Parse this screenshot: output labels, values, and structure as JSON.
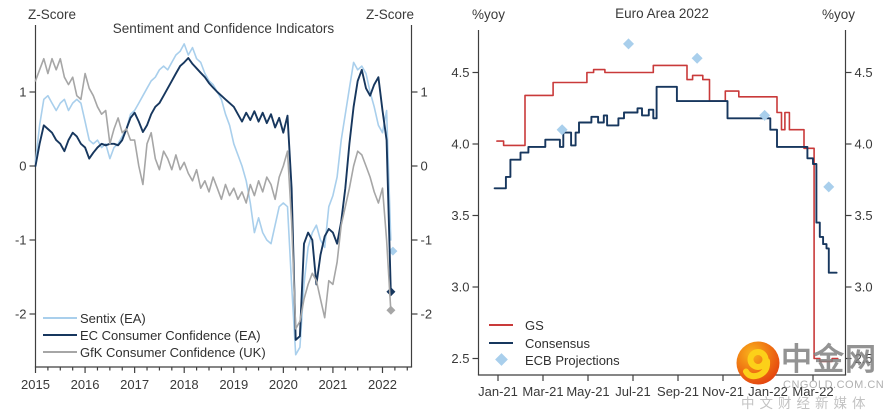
{
  "colors": {
    "background": "#ffffff",
    "axis": "#3f3f3f",
    "text": "#3a3a3a",
    "sentix_blue": "#a9cfec",
    "navy": "#17375e",
    "gray": "#a6a6a6",
    "gs_red": "#c93a3a"
  },
  "watermark": {
    "name": "中金网",
    "domain": "CNGOLD.COM.CN",
    "tagline": "中文财经新媒体",
    "logo_icon": "cngold-swirl-logo"
  },
  "chart_data": [
    {
      "type": "line",
      "title": "Sentiment and Confidence Indicators",
      "unit_left": "Z-Score",
      "unit_right": "Z-Score",
      "ylabel": "Z-Score",
      "ylim": [
        -2.72,
        1.9
      ],
      "y_ticks": [
        1,
        0,
        -1,
        -2
      ],
      "y_tick_labels": [
        "1",
        "0",
        "-1",
        "-2"
      ],
      "x_ticks": [
        2015,
        2016,
        2017,
        2018,
        2019,
        2020,
        2021,
        2022
      ],
      "x_tick_labels": [
        "2015",
        "2016",
        "2017",
        "2018",
        "2019",
        "2020",
        "2021",
        "2022"
      ],
      "x_unit": "year, monthly data",
      "grid": false,
      "legend_position": "lower-left",
      "series": [
        {
          "name": "Sentix (EA)",
          "color": "#a9cfec",
          "width": 1.6,
          "x_start": 2015.0,
          "x_step": 0.0833333,
          "values": [
            0.05,
            0.55,
            0.9,
            0.95,
            0.85,
            0.75,
            0.85,
            0.9,
            0.75,
            0.85,
            0.9,
            0.85,
            0.6,
            0.35,
            0.3,
            0.35,
            0.25,
            0.3,
            0.1,
            0.25,
            0.3,
            0.4,
            0.5,
            0.7,
            0.75,
            0.85,
            0.95,
            1.05,
            1.15,
            1.2,
            1.3,
            1.35,
            1.3,
            1.4,
            1.5,
            1.55,
            1.65,
            1.5,
            1.6,
            1.45,
            1.4,
            1.25,
            1.15,
            1.1,
            1.0,
            0.9,
            0.7,
            0.55,
            0.3,
            0.15,
            0.0,
            -0.2,
            -0.5,
            -0.9,
            -0.7,
            -0.9,
            -1.0,
            -1.05,
            -0.8,
            -0.55,
            -0.5,
            -0.55,
            -1.6,
            -2.55,
            -2.45,
            -1.6,
            -1.1,
            -0.9,
            -0.8,
            -1.0,
            -1.1,
            -0.55,
            -0.4,
            -0.15,
            0.35,
            0.7,
            1.05,
            1.4,
            1.3,
            1.35,
            1.25,
            1.0,
            0.8,
            0.55,
            0.45,
            0.75,
            -1.0
          ],
          "marker": {
            "x": 2022.21,
            "v": -1.15
          }
        },
        {
          "name": "EC Consumer Confidence (EA)",
          "color": "#17375e",
          "width": 1.9,
          "x_start": 2015.0,
          "x_step": 0.0833333,
          "values": [
            0.0,
            0.3,
            0.55,
            0.5,
            0.45,
            0.35,
            0.3,
            0.2,
            0.35,
            0.45,
            0.4,
            0.3,
            0.25,
            0.1,
            0.18,
            0.25,
            0.3,
            0.28,
            0.3,
            0.3,
            0.28,
            0.35,
            0.5,
            0.65,
            0.72,
            0.6,
            0.46,
            0.55,
            0.7,
            0.8,
            0.85,
            0.95,
            1.05,
            1.15,
            1.25,
            1.35,
            1.4,
            1.46,
            1.38,
            1.32,
            1.26,
            1.2,
            1.12,
            1.06,
            1.0,
            0.95,
            0.9,
            0.85,
            0.8,
            0.7,
            0.6,
            0.72,
            0.62,
            0.74,
            0.6,
            0.72,
            0.58,
            0.7,
            0.52,
            0.65,
            0.45,
            0.68,
            -0.3,
            -2.35,
            -2.3,
            -1.05,
            -0.9,
            -1.0,
            -1.6,
            -1.2,
            -0.95,
            -0.85,
            -0.9,
            -1.05,
            -0.75,
            -0.3,
            0.3,
            0.8,
            1.15,
            1.3,
            1.05,
            0.95,
            1.1,
            1.2,
            0.75,
            0.35,
            -1.7
          ],
          "marker": {
            "x": 2022.17,
            "v": -1.7
          }
        },
        {
          "name": "GfK Consumer Confidence (UK)",
          "color": "#a6a6a6",
          "width": 1.6,
          "x_start": 2015.0,
          "x_step": 0.0833333,
          "values": [
            1.15,
            1.3,
            1.45,
            1.25,
            1.45,
            1.3,
            1.45,
            1.2,
            1.1,
            1.2,
            0.95,
            0.9,
            1.25,
            1.05,
            0.95,
            0.8,
            0.7,
            0.75,
            0.3,
            0.5,
            0.65,
            0.45,
            0.5,
            0.35,
            0.35,
            0.0,
            -0.25,
            0.3,
            0.45,
            0.1,
            -0.05,
            0.2,
            0.1,
            -0.05,
            0.15,
            -0.05,
            0.05,
            -0.1,
            -0.2,
            -0.05,
            -0.3,
            -0.2,
            -0.35,
            -0.15,
            -0.3,
            -0.45,
            -0.25,
            -0.4,
            -0.3,
            -0.45,
            -0.35,
            -0.5,
            -0.25,
            -0.4,
            -0.2,
            -0.35,
            -0.15,
            -0.25,
            -0.45,
            -0.15,
            0.0,
            0.2,
            -0.75,
            -2.2,
            -2.1,
            -1.8,
            -1.6,
            -1.45,
            -1.55,
            -1.8,
            -2.05,
            -1.55,
            -1.6,
            -1.3,
            -0.8,
            -0.55,
            -0.3,
            0.0,
            0.2,
            0.15,
            0.0,
            -0.15,
            -0.35,
            -0.5,
            -0.3,
            -1.0,
            -1.95
          ],
          "marker": {
            "x": 2022.17,
            "v": -1.95
          }
        }
      ]
    },
    {
      "type": "line",
      "title": "Euro Area 2022",
      "unit_left": "%yoy",
      "unit_right": "%yoy",
      "ylabel": "%yoy",
      "ylim": [
        2.38,
        4.8
      ],
      "y_ticks": [
        2.5,
        3.0,
        3.5,
        4.0,
        4.5
      ],
      "y_tick_labels": [
        "2.5",
        "3.0",
        "3.5",
        "4.0",
        "4.5"
      ],
      "x_ticks": [
        0,
        2,
        4,
        6,
        8,
        10,
        12,
        14
      ],
      "x_tick_labels": [
        "Jan-21",
        "Mar-21",
        "May-21",
        "Jul-21",
        "Sep-21",
        "Nov-21",
        "Jan-22",
        "Mar-22"
      ],
      "x_unit": "months since Jan-2021, forecast vintage",
      "grid": false,
      "legend_position": "lower-left",
      "series": [
        {
          "name": "GS",
          "color": "#c93a3a",
          "width": 1.6,
          "points": [
            [
              -0.05,
              4.02
            ],
            [
              0.25,
              4.02
            ],
            [
              0.25,
              3.99
            ],
            [
              1.2,
              3.99
            ],
            [
              1.2,
              4.34
            ],
            [
              2.45,
              4.34
            ],
            [
              2.45,
              4.43
            ],
            [
              3.95,
              4.43
            ],
            [
              3.95,
              4.5
            ],
            [
              4.25,
              4.5
            ],
            [
              4.25,
              4.52
            ],
            [
              4.75,
              4.52
            ],
            [
              4.75,
              4.5
            ],
            [
              6.9,
              4.5
            ],
            [
              6.9,
              4.55
            ],
            [
              8.4,
              4.55
            ],
            [
              8.4,
              4.45
            ],
            [
              8.65,
              4.45
            ],
            [
              8.65,
              4.48
            ],
            [
              9.1,
              4.48
            ],
            [
              9.1,
              4.45
            ],
            [
              9.4,
              4.45
            ],
            [
              9.4,
              4.3
            ],
            [
              10.1,
              4.3
            ],
            [
              10.1,
              4.37
            ],
            [
              10.7,
              4.37
            ],
            [
              10.7,
              4.33
            ],
            [
              12.4,
              4.33
            ],
            [
              12.4,
              4.22
            ],
            [
              12.6,
              4.22
            ],
            [
              12.6,
              4.1
            ],
            [
              12.75,
              4.1
            ],
            [
              12.75,
              4.22
            ],
            [
              12.95,
              4.22
            ],
            [
              12.95,
              4.1
            ],
            [
              13.6,
              4.1
            ],
            [
              13.6,
              3.97
            ],
            [
              14.05,
              3.97
            ],
            [
              14.05,
              2.5
            ],
            [
              14.3,
              2.5
            ],
            [
              14.3,
              2.48
            ],
            [
              14.85,
              2.48
            ],
            [
              14.85,
              2.5
            ],
            [
              15.1,
              2.5
            ]
          ]
        },
        {
          "name": "Consensus",
          "color": "#17375e",
          "width": 1.9,
          "points": [
            [
              -0.15,
              3.69
            ],
            [
              0.35,
              3.69
            ],
            [
              0.35,
              3.77
            ],
            [
              0.55,
              3.77
            ],
            [
              0.55,
              3.89
            ],
            [
              1.0,
              3.89
            ],
            [
              1.0,
              3.94
            ],
            [
              1.35,
              3.94
            ],
            [
              1.35,
              3.98
            ],
            [
              2.1,
              3.98
            ],
            [
              2.1,
              4.03
            ],
            [
              2.75,
              4.03
            ],
            [
              2.75,
              3.98
            ],
            [
              2.9,
              3.98
            ],
            [
              2.9,
              4.08
            ],
            [
              3.25,
              4.08
            ],
            [
              3.25,
              3.99
            ],
            [
              3.45,
              3.99
            ],
            [
              3.45,
              4.08
            ],
            [
              3.6,
              4.08
            ],
            [
              3.6,
              4.15
            ],
            [
              4.15,
              4.15
            ],
            [
              4.15,
              4.19
            ],
            [
              4.45,
              4.19
            ],
            [
              4.45,
              4.15
            ],
            [
              4.7,
              4.15
            ],
            [
              4.7,
              4.2
            ],
            [
              4.85,
              4.2
            ],
            [
              4.85,
              4.13
            ],
            [
              5.35,
              4.13
            ],
            [
              5.35,
              4.18
            ],
            [
              5.6,
              4.18
            ],
            [
              5.6,
              4.22
            ],
            [
              6.2,
              4.22
            ],
            [
              6.2,
              4.25
            ],
            [
              6.4,
              4.25
            ],
            [
              6.4,
              4.2
            ],
            [
              6.7,
              4.2
            ],
            [
              6.7,
              4.24
            ],
            [
              6.9,
              4.24
            ],
            [
              6.9,
              4.18
            ],
            [
              7.05,
              4.18
            ],
            [
              7.05,
              4.4
            ],
            [
              7.95,
              4.4
            ],
            [
              7.95,
              4.3
            ],
            [
              10.2,
              4.3
            ],
            [
              10.2,
              4.18
            ],
            [
              12.1,
              4.18
            ],
            [
              12.1,
              4.1
            ],
            [
              12.4,
              4.1
            ],
            [
              12.4,
              3.98
            ],
            [
              13.75,
              3.98
            ],
            [
              13.75,
              3.9
            ],
            [
              14.0,
              3.9
            ],
            [
              14.0,
              3.86
            ],
            [
              14.15,
              3.86
            ],
            [
              14.15,
              3.45
            ],
            [
              14.3,
              3.45
            ],
            [
              14.3,
              3.35
            ],
            [
              14.45,
              3.35
            ],
            [
              14.45,
              3.3
            ],
            [
              14.6,
              3.3
            ],
            [
              14.6,
              3.27
            ],
            [
              14.7,
              3.27
            ],
            [
              14.7,
              3.1
            ],
            [
              15.05,
              3.1
            ]
          ]
        },
        {
          "name": "ECB Projections",
          "color": "#a9cfec",
          "type": "diamonds",
          "points": [
            [
              2.85,
              4.1
            ],
            [
              5.8,
              4.7
            ],
            [
              8.85,
              4.6
            ],
            [
              11.85,
              4.2
            ],
            [
              14.7,
              3.7
            ]
          ]
        }
      ]
    }
  ]
}
